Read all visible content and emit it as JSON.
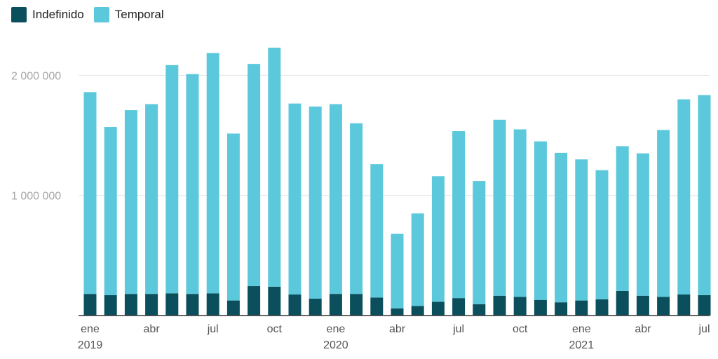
{
  "chart_data": {
    "type": "bar",
    "stacked": true,
    "title": "",
    "xlabel": "",
    "ylabel": "",
    "ylim": [
      0,
      2300000
    ],
    "grid": true,
    "legend_position": "top-left",
    "colors": {
      "Indefinido": "#0b4f5c",
      "Temporal": "#5bc8dc"
    },
    "categories": [
      "ene 2019",
      "feb 2019",
      "mar 2019",
      "abr 2019",
      "may 2019",
      "jun 2019",
      "jul 2019",
      "ago 2019",
      "sep 2019",
      "oct 2019",
      "nov 2019",
      "dic 2019",
      "ene 2020",
      "feb 2020",
      "mar 2020",
      "abr 2020",
      "may 2020",
      "jun 2020",
      "jul 2020",
      "ago 2020",
      "sep 2020",
      "oct 2020",
      "nov 2020",
      "dic 2020",
      "ene 2021",
      "feb 2021",
      "mar 2021",
      "abr 2021",
      "may 2021",
      "jun 2021",
      "jul 2021"
    ],
    "series": [
      {
        "name": "Indefinido",
        "values": [
          180000,
          170000,
          180000,
          180000,
          185000,
          180000,
          185000,
          125000,
          245000,
          240000,
          175000,
          140000,
          180000,
          180000,
          150000,
          60000,
          80000,
          115000,
          145000,
          95000,
          165000,
          155000,
          130000,
          110000,
          125000,
          135000,
          205000,
          165000,
          155000,
          175000,
          170000
        ]
      },
      {
        "name": "Temporal",
        "values": [
          1680000,
          1400000,
          1530000,
          1580000,
          1900000,
          1830000,
          2000000,
          1390000,
          1850000,
          1990000,
          1590000,
          1600000,
          1580000,
          1420000,
          1110000,
          620000,
          770000,
          1045000,
          1390000,
          1025000,
          1465000,
          1395000,
          1320000,
          1245000,
          1175000,
          1075000,
          1205000,
          1185000,
          1390000,
          1625000,
          1665000
        ]
      }
    ],
    "y_ticks": [
      {
        "value": 1000000,
        "label": "1 000 000"
      },
      {
        "value": 2000000,
        "label": "2 000 000"
      }
    ],
    "x_ticks": [
      {
        "index": 0,
        "label": "ene",
        "year": "2019"
      },
      {
        "index": 3,
        "label": "abr"
      },
      {
        "index": 6,
        "label": "jul"
      },
      {
        "index": 9,
        "label": "oct"
      },
      {
        "index": 12,
        "label": "ene",
        "year": "2020"
      },
      {
        "index": 15,
        "label": "abr"
      },
      {
        "index": 18,
        "label": "jul"
      },
      {
        "index": 21,
        "label": "oct"
      },
      {
        "index": 24,
        "label": "ene",
        "year": "2021"
      },
      {
        "index": 27,
        "label": "abr"
      },
      {
        "index": 30,
        "label": "jul"
      }
    ]
  },
  "legend": [
    {
      "name": "Indefinido",
      "color": "#0b4f5c"
    },
    {
      "name": "Temporal",
      "color": "#5bc8dc"
    }
  ]
}
